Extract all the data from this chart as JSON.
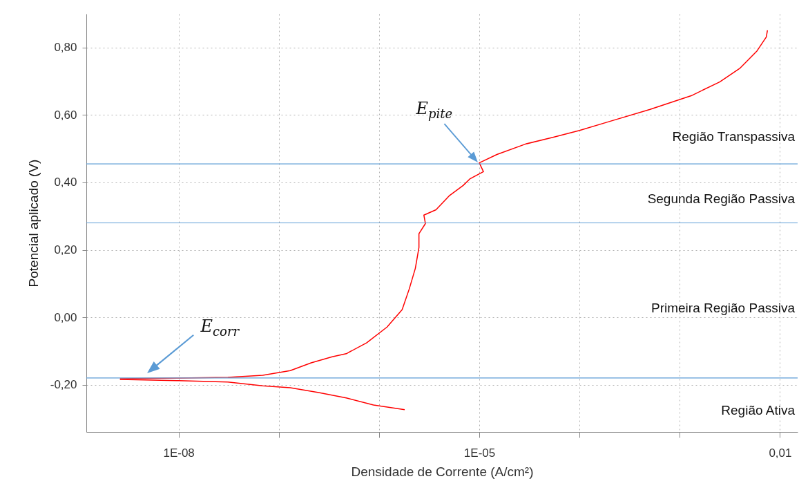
{
  "chart_data": {
    "type": "line",
    "xlabel": "Densidade de Corrente (A/cm²)",
    "ylabel": "Potencial aplicado (V)",
    "log": "x",
    "grid": true,
    "marker": "none",
    "line_style": "solid",
    "xlim": [
      1.2e-09,
      0.015
    ],
    "ylim": [
      -0.34,
      0.9
    ],
    "xticks": [
      {
        "value": 1e-08,
        "label": "1E-08"
      },
      {
        "value": 1e-07,
        "label": null
      },
      {
        "value": 1e-06,
        "label": null
      },
      {
        "value": 1e-05,
        "label": "1E-05"
      },
      {
        "value": 0.0001,
        "label": null
      },
      {
        "value": 0.001,
        "label": null
      },
      {
        "value": 0.01,
        "label": "0,01"
      }
    ],
    "yticks": [
      {
        "value": -0.2,
        "label": "-0,20"
      },
      {
        "value": 0,
        "label": "0,00"
      },
      {
        "value": 0.2,
        "label": "0,20"
      },
      {
        "value": 0.4,
        "label": "0,40"
      },
      {
        "value": 0.6,
        "label": "0,60"
      },
      {
        "value": 0.8,
        "label": "0,80"
      }
    ],
    "series": [
      {
        "color": "#ff0000",
        "x": [
          2.6e-09,
          1e-08,
          3.1e-08,
          6.9e-08,
          1.3e-07,
          2.1e-07,
          3.4e-07,
          4.7e-07,
          7.5e-07,
          1.2e-06,
          1.7e-06,
          2e-06,
          2.3e-06,
          2.5e-06,
          2.5e-06,
          2.9e-06,
          2.8e-06,
          3.7e-06,
          5e-06,
          6.9e-06,
          8.1e-06,
          1.1e-05,
          1e-05,
          1.5e-05,
          2.9e-05,
          5.5e-05,
          0.0001,
          0.00019,
          0.0005,
          0.0013,
          0.0025,
          0.004,
          0.0059,
          0.0073,
          0.0075
        ],
        "values": [
          -0.182,
          -0.18,
          -0.178,
          -0.172,
          -0.158,
          -0.135,
          -0.117,
          -0.108,
          -0.076,
          -0.029,
          0.023,
          0.084,
          0.145,
          0.207,
          0.248,
          0.278,
          0.303,
          0.319,
          0.36,
          0.391,
          0.411,
          0.432,
          0.458,
          0.483,
          0.514,
          0.534,
          0.554,
          0.579,
          0.616,
          0.657,
          0.698,
          0.739,
          0.79,
          0.831,
          0.851
        ]
      },
      {
        "color": "#ff0000",
        "x": [
          2.6e-09,
          1e-08,
          3.1e-08,
          6.9e-08,
          1.3e-07,
          2.5e-07,
          4.7e-07,
          8.8e-07,
          1.8e-06
        ],
        "values": [
          -0.184,
          -0.188,
          -0.192,
          -0.203,
          -0.209,
          -0.223,
          -0.239,
          -0.26,
          -0.274
        ]
      }
    ],
    "ref_lines": [
      {
        "axis": "y",
        "value": 0.455,
        "color": "#5b9bd5"
      },
      {
        "axis": "y",
        "value": 0.28,
        "color": "#5b9bd5"
      },
      {
        "axis": "y",
        "value": -0.18,
        "color": "#5b9bd5"
      }
    ],
    "annotations": [
      "Região Transpassiva",
      "Segunda Região Passiva",
      "Primeira Região Passiva",
      "Região Ativa",
      "E$_{pite}$",
      "E$_{corr}$"
    ]
  }
}
